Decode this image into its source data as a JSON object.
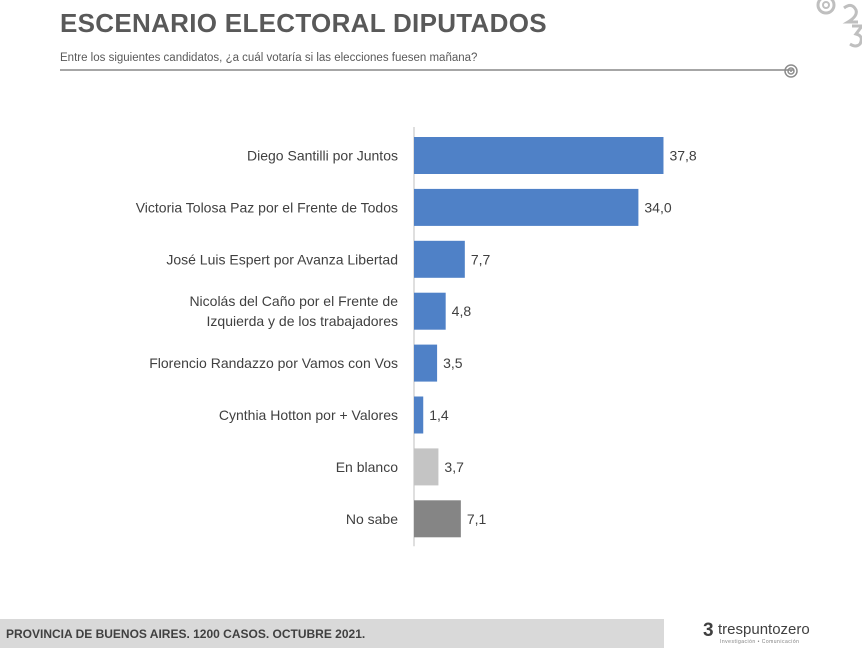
{
  "header": {
    "title": "ESCENARIO ELECTORAL DIPUTADOS",
    "subtitle": "Entre los siguientes candidatos, ¿a cuál votaría si las elecciones fuesen mañana?"
  },
  "chart_data": {
    "type": "bar",
    "orientation": "horizontal",
    "categories": [
      [
        "Diego Santilli por Juntos"
      ],
      [
        "Victoria Tolosa Paz por el Frente de Todos"
      ],
      [
        "José Luis Espert por Avanza Libertad"
      ],
      [
        "Nicolás del Caño por el Frente de",
        "Izquierda y de los trabajadores"
      ],
      [
        "Florencio Randazzo por Vamos con Vos"
      ],
      [
        "Cynthia Hotton por + Valores"
      ],
      [
        "En blanco"
      ],
      [
        "No sabe"
      ]
    ],
    "values": [
      37.8,
      34.0,
      7.7,
      4.8,
      3.5,
      1.4,
      3.7,
      7.1
    ],
    "value_labels": [
      "37,8",
      "34,0",
      "7,7",
      "4,8",
      "3,5",
      "1,4",
      "3,7",
      "7,1"
    ],
    "colors": [
      "#4f81c7",
      "#4f81c7",
      "#4f81c7",
      "#4f81c7",
      "#4f81c7",
      "#4f81c7",
      "#c4c4c4",
      "#858585"
    ],
    "xlim": [
      0,
      40
    ],
    "grid": false,
    "legend": "none",
    "title": "",
    "xlabel": "",
    "ylabel": ""
  },
  "footer": {
    "note": "PROVINCIA DE BUENOS AIRES. 1200 CASOS. OCTUBRE 2021.",
    "brand_mark": "3",
    "brand_name": "trespuntozero",
    "brand_tagline": "Investigación • Comunicación"
  }
}
